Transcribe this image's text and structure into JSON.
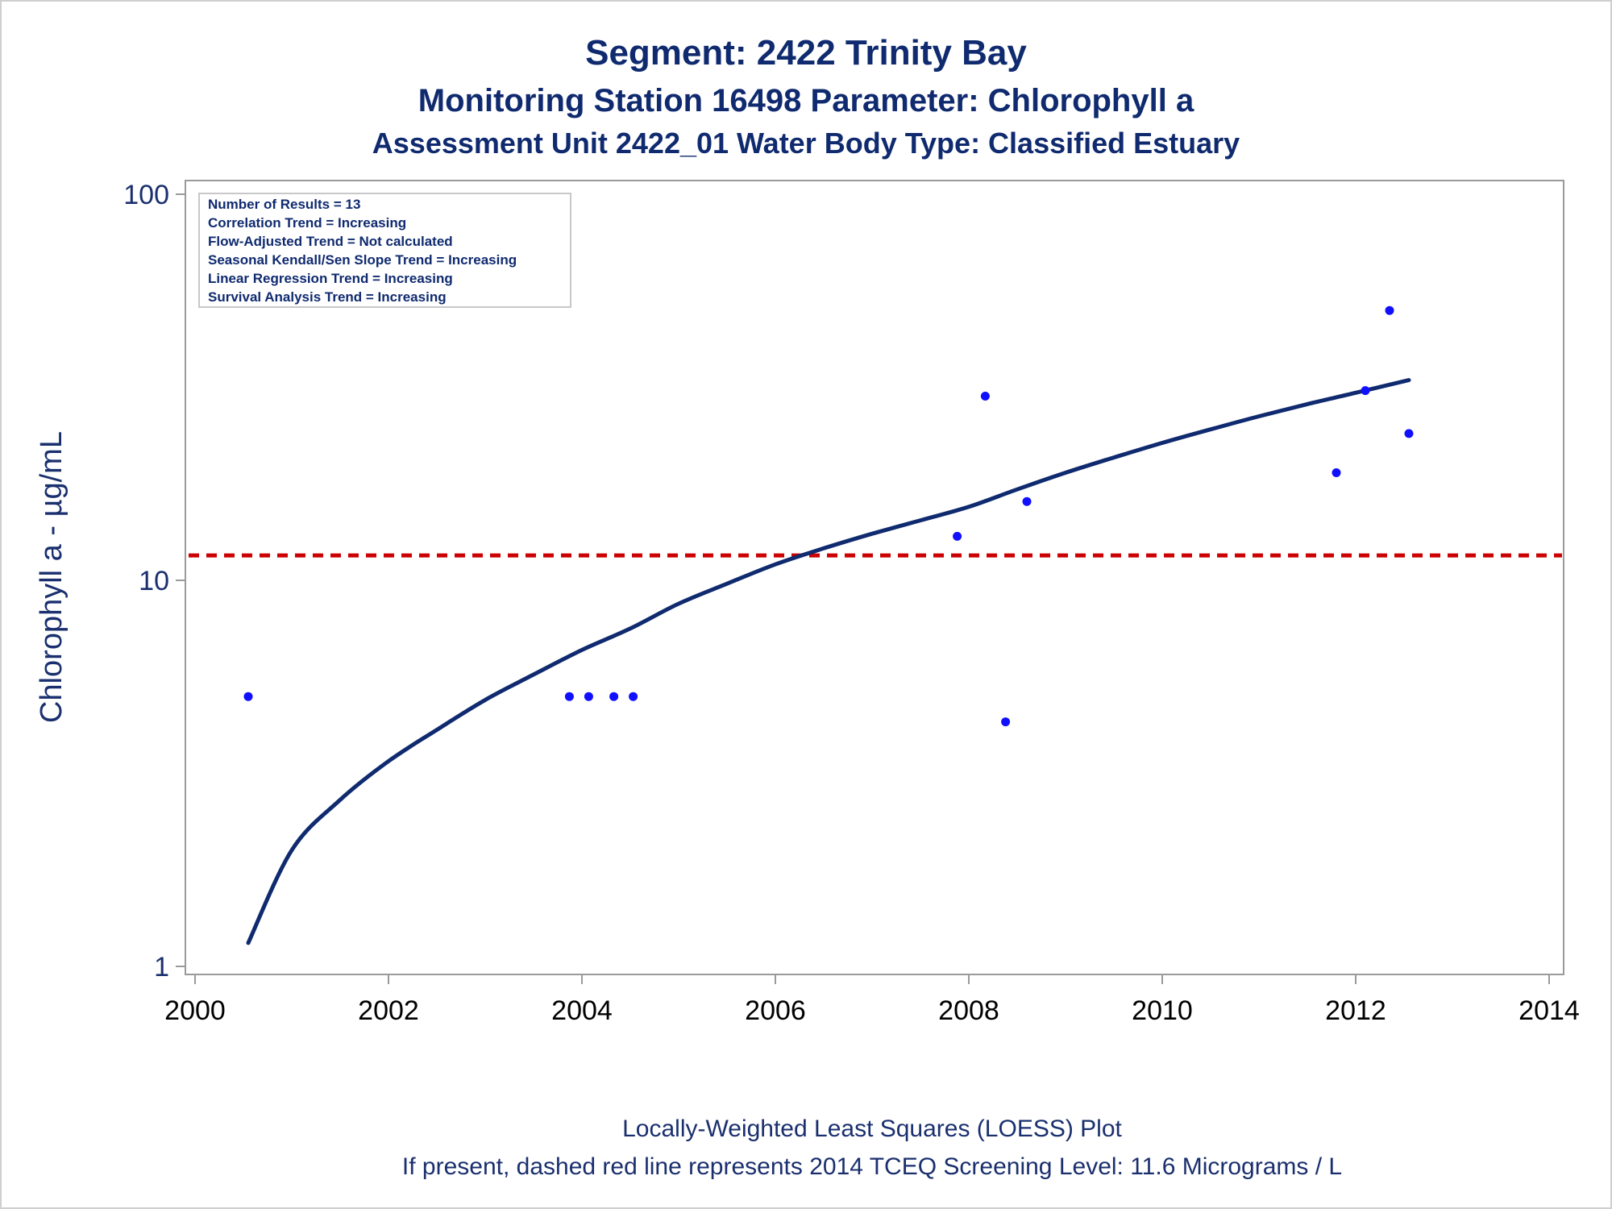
{
  "chart_data": {
    "type": "scatter",
    "title": "Segment: 2422  Trinity Bay",
    "subtitle": "Monitoring Station 16498 Parameter: Chlorophyll a",
    "subtitle2": "Assessment Unit 2422_01   Water Body Type: Classified Estuary",
    "ylabel": "Chlorophyll a -  µg/mL",
    "xlabel": "",
    "yscale": "log",
    "ylim": [
      1,
      100
    ],
    "xlim": [
      2000,
      2014
    ],
    "x_ticks": [
      2000,
      2002,
      2004,
      2006,
      2008,
      2010,
      2012,
      2014
    ],
    "y_ticks": [
      1,
      10,
      100
    ],
    "grid": false,
    "stats_box": {
      "position": "top-left",
      "lines": [
        "Number of Results = 13",
        "Correlation Trend = Increasing",
        "Flow-Adjusted Trend = Not calculated",
        "Seasonal Kendall/Sen Slope Trend = Increasing",
        "Linear Regression Trend = Increasing",
        "Survival Analysis Trend = Increasing"
      ]
    },
    "points": {
      "color": "#1010ff",
      "x": [
        2000.55,
        2003.87,
        2004.07,
        2004.33,
        2004.53,
        2007.88,
        2008.17,
        2008.38,
        2008.6,
        2011.8,
        2012.1,
        2012.35,
        2012.55
      ],
      "y": [
        5.0,
        5.0,
        5.0,
        5.0,
        5.0,
        13.0,
        30.0,
        4.3,
        16.0,
        19.0,
        31.0,
        50.0,
        24.0
      ]
    },
    "loess": {
      "color": "#0f2a6f",
      "x": [
        2000.55,
        2001.0,
        2001.5,
        2002.0,
        2002.5,
        2003.0,
        2003.5,
        2004.0,
        2004.5,
        2005.0,
        2005.5,
        2006.0,
        2006.5,
        2007.0,
        2007.5,
        2008.0,
        2008.5,
        2009.0,
        2009.5,
        2010.0,
        2010.5,
        2011.0,
        2011.5,
        2012.0,
        2012.55
      ],
      "y": [
        1.15,
        2.0,
        2.7,
        3.4,
        4.1,
        4.9,
        5.7,
        6.6,
        7.5,
        8.7,
        9.8,
        11.0,
        12.1,
        13.2,
        14.3,
        15.5,
        17.2,
        19.0,
        20.8,
        22.7,
        24.6,
        26.6,
        28.6,
        30.6,
        33.0
      ]
    },
    "screening_level": {
      "value": 11.6,
      "color": "#cc0000",
      "style": "dashed"
    },
    "footnotes": [
      "Locally-Weighted Least Squares (LOESS) Plot",
      "If present, dashed red line represents 2014 TCEQ Screening Level: 11.6 Micrograms / L"
    ]
  }
}
